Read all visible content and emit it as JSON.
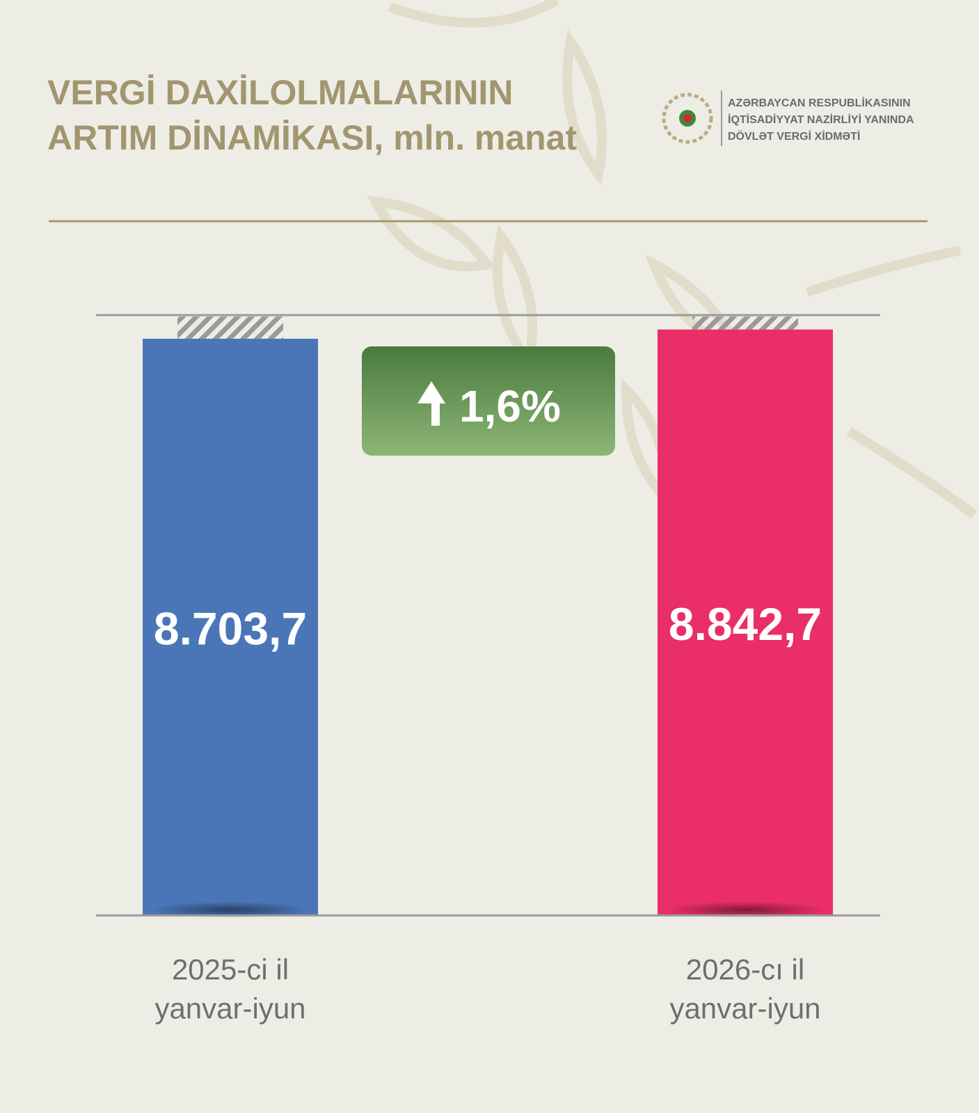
{
  "chart_data": {
    "type": "bar",
    "title": [
      "VERGİ DAXİLOLMALARININ",
      "ARTIM DİNAMİKASI, mln. manat"
    ],
    "organization": [
      "AZƏRBAYCAN RESPUBLİKASININ",
      "İQTİSADİYYAT NAZİRLİYİ YANINDA",
      "DÖVLƏT VERGİ XİDMƏTİ"
    ],
    "categories": [
      [
        "2025-ci il",
        "yanvar-iyun"
      ],
      [
        "2026-cı il",
        "yanvar-iyun"
      ]
    ],
    "values": [
      8703.7,
      8842.7
    ],
    "value_labels": [
      "8.703,7",
      "8.842,7"
    ],
    "colors": [
      "#4a76b8",
      "#ea2e67"
    ],
    "ylim": [
      0,
      9060
    ],
    "annotation": "1,6%"
  }
}
